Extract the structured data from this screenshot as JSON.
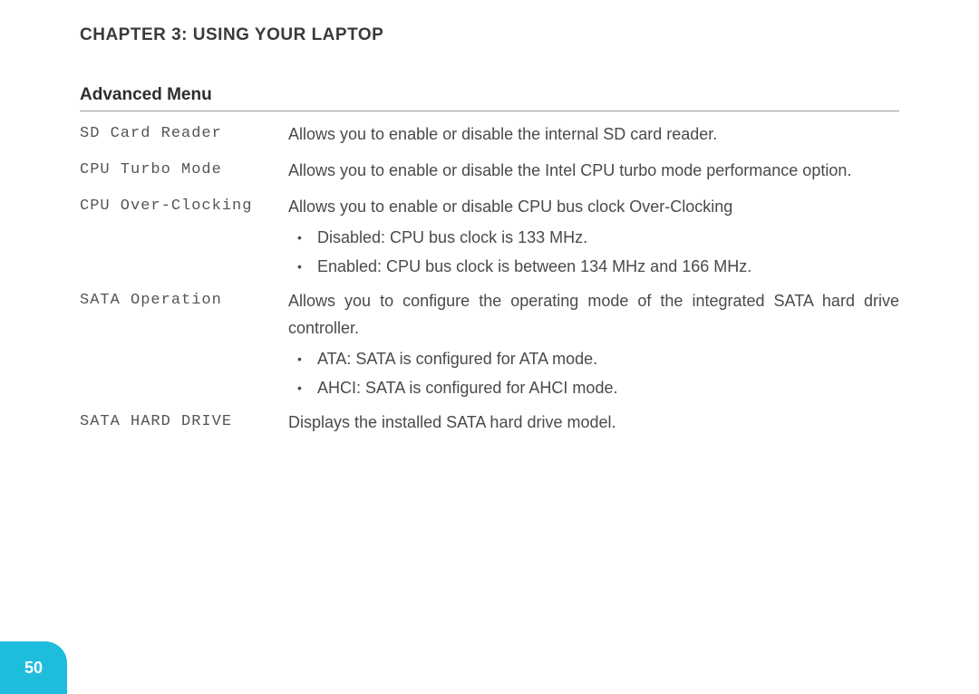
{
  "chapter_title": "CHAPTER 3: USING YOUR LAPTOP",
  "section_title": "Advanced Menu",
  "page_number": "50",
  "tab_color": "#1fbddd",
  "rows": [
    {
      "term": "SD Card Reader",
      "desc": "Allows you to enable or disable the internal SD card reader."
    },
    {
      "term": "CPU Turbo Mode",
      "desc": "Allows you to enable or disable the Intel CPU turbo mode performance option."
    },
    {
      "term": "CPU Over-Clocking",
      "desc": "Allows you to enable or disable CPU bus clock Over-Clocking",
      "bullets": [
        "Disabled: CPU bus clock is 133 MHz.",
        "Enabled: CPU bus clock is between 134 MHz and 166 MHz."
      ]
    },
    {
      "term": "SATA Operation",
      "desc": "Allows you to configure the operating mode of the integrated SATA hard drive controller.",
      "bullets": [
        "ATA: SATA is configured for ATA mode.",
        "AHCI: SATA is configured for AHCI mode."
      ]
    },
    {
      "term": "SATA HARD DRIVE",
      "desc": "Displays the installed SATA hard drive model."
    }
  ]
}
